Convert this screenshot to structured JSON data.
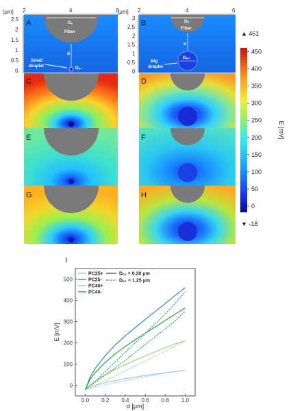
{
  "panels": {
    "A": {
      "letter": "A",
      "fiber_label": "Fiber",
      "fiber_d": "Dₓ",
      "dist": "d",
      "droplet_label_1": "Small",
      "droplet_label_2": "droplet",
      "droplet_d": "Dₒ₁"
    },
    "B": {
      "letter": "B",
      "fiber_label": "Fiber",
      "fiber_d": "Dₓ",
      "dist": "d",
      "droplet_label_1": "Big",
      "droplet_label_2": "droplet",
      "droplet_d": "Dₒ₂"
    },
    "C": {
      "letter": "C"
    },
    "D": {
      "letter": "D"
    },
    "E": {
      "letter": "E"
    },
    "F": {
      "letter": "F"
    },
    "G": {
      "letter": "G"
    },
    "H": {
      "letter": "H"
    }
  },
  "axes_left": {
    "unit": "[μm]",
    "x_ticks": [
      "2",
      "4",
      "6"
    ],
    "y_ticks": [
      "2.5",
      "2",
      "1.5",
      "1",
      "0.5",
      "0"
    ]
  },
  "axes_right": {
    "unit": "[μm]",
    "x_ticks": [
      "2",
      "4",
      "6"
    ],
    "y_ticks": [
      "3",
      "2.5",
      "2",
      "1.5",
      "1",
      "0.5",
      "0"
    ]
  },
  "colorbar": {
    "max_label": "▲ 461",
    "min_label": "▼ -18",
    "ticks": [
      "450",
      "400",
      "350",
      "300",
      "250",
      "200",
      "150",
      "100",
      "50",
      "0"
    ],
    "title": "E [mV]"
  },
  "chart_data": {
    "type": "line",
    "panel_label": "I",
    "xlabel": "d [μm]",
    "ylabel": "E [mV]",
    "xlim": [
      -0.1,
      1.1
    ],
    "ylim": [
      -50,
      550
    ],
    "x_ticks": [
      "0.0",
      "0.2",
      "0.4",
      "0.6",
      "0.8",
      "1.0"
    ],
    "y_ticks": [
      "0",
      "100",
      "200",
      "300",
      "400",
      "500"
    ],
    "legend": {
      "placement": "top-left",
      "size_entries": [
        "Dₒ₁ = 0.20 μm",
        "Dₒ₂ = 1.25  μm"
      ]
    },
    "x": [
      0.0,
      0.05,
      0.1,
      0.2,
      0.3,
      0.4,
      0.5,
      0.6,
      0.7,
      0.8,
      0.9,
      1.0
    ],
    "series": [
      {
        "name": "PC25+",
        "color": "#9ed0ea",
        "small": [
          -20,
          -8,
          0,
          12,
          22,
          31,
          39,
          46,
          53,
          59,
          65,
          70
        ],
        "big": [
          -20,
          -14,
          -8,
          2,
          12,
          22,
          31,
          40,
          49,
          57,
          64,
          70
        ]
      },
      {
        "name": "PC25-",
        "color": "#3a8fc0",
        "small": [
          -20,
          40,
          80,
          140,
          190,
          233,
          272,
          310,
          348,
          385,
          423,
          460
        ],
        "big": [
          -20,
          0,
          20,
          65,
          110,
          155,
          200,
          245,
          290,
          335,
          385,
          440
        ]
      },
      {
        "name": "PC40+",
        "color": "#a6d68a",
        "small": [
          -20,
          2,
          20,
          50,
          75,
          97,
          118,
          138,
          158,
          177,
          195,
          210
        ],
        "big": [
          -20,
          -10,
          0,
          22,
          45,
          68,
          91,
          114,
          137,
          160,
          185,
          210
        ]
      },
      {
        "name": "PC40-",
        "color": "#3aa84a",
        "small": [
          -20,
          30,
          60,
          108,
          148,
          183,
          215,
          245,
          275,
          305,
          335,
          365
        ],
        "big": [
          -20,
          0,
          15,
          48,
          82,
          118,
          155,
          192,
          229,
          266,
          303,
          350
        ]
      }
    ]
  }
}
